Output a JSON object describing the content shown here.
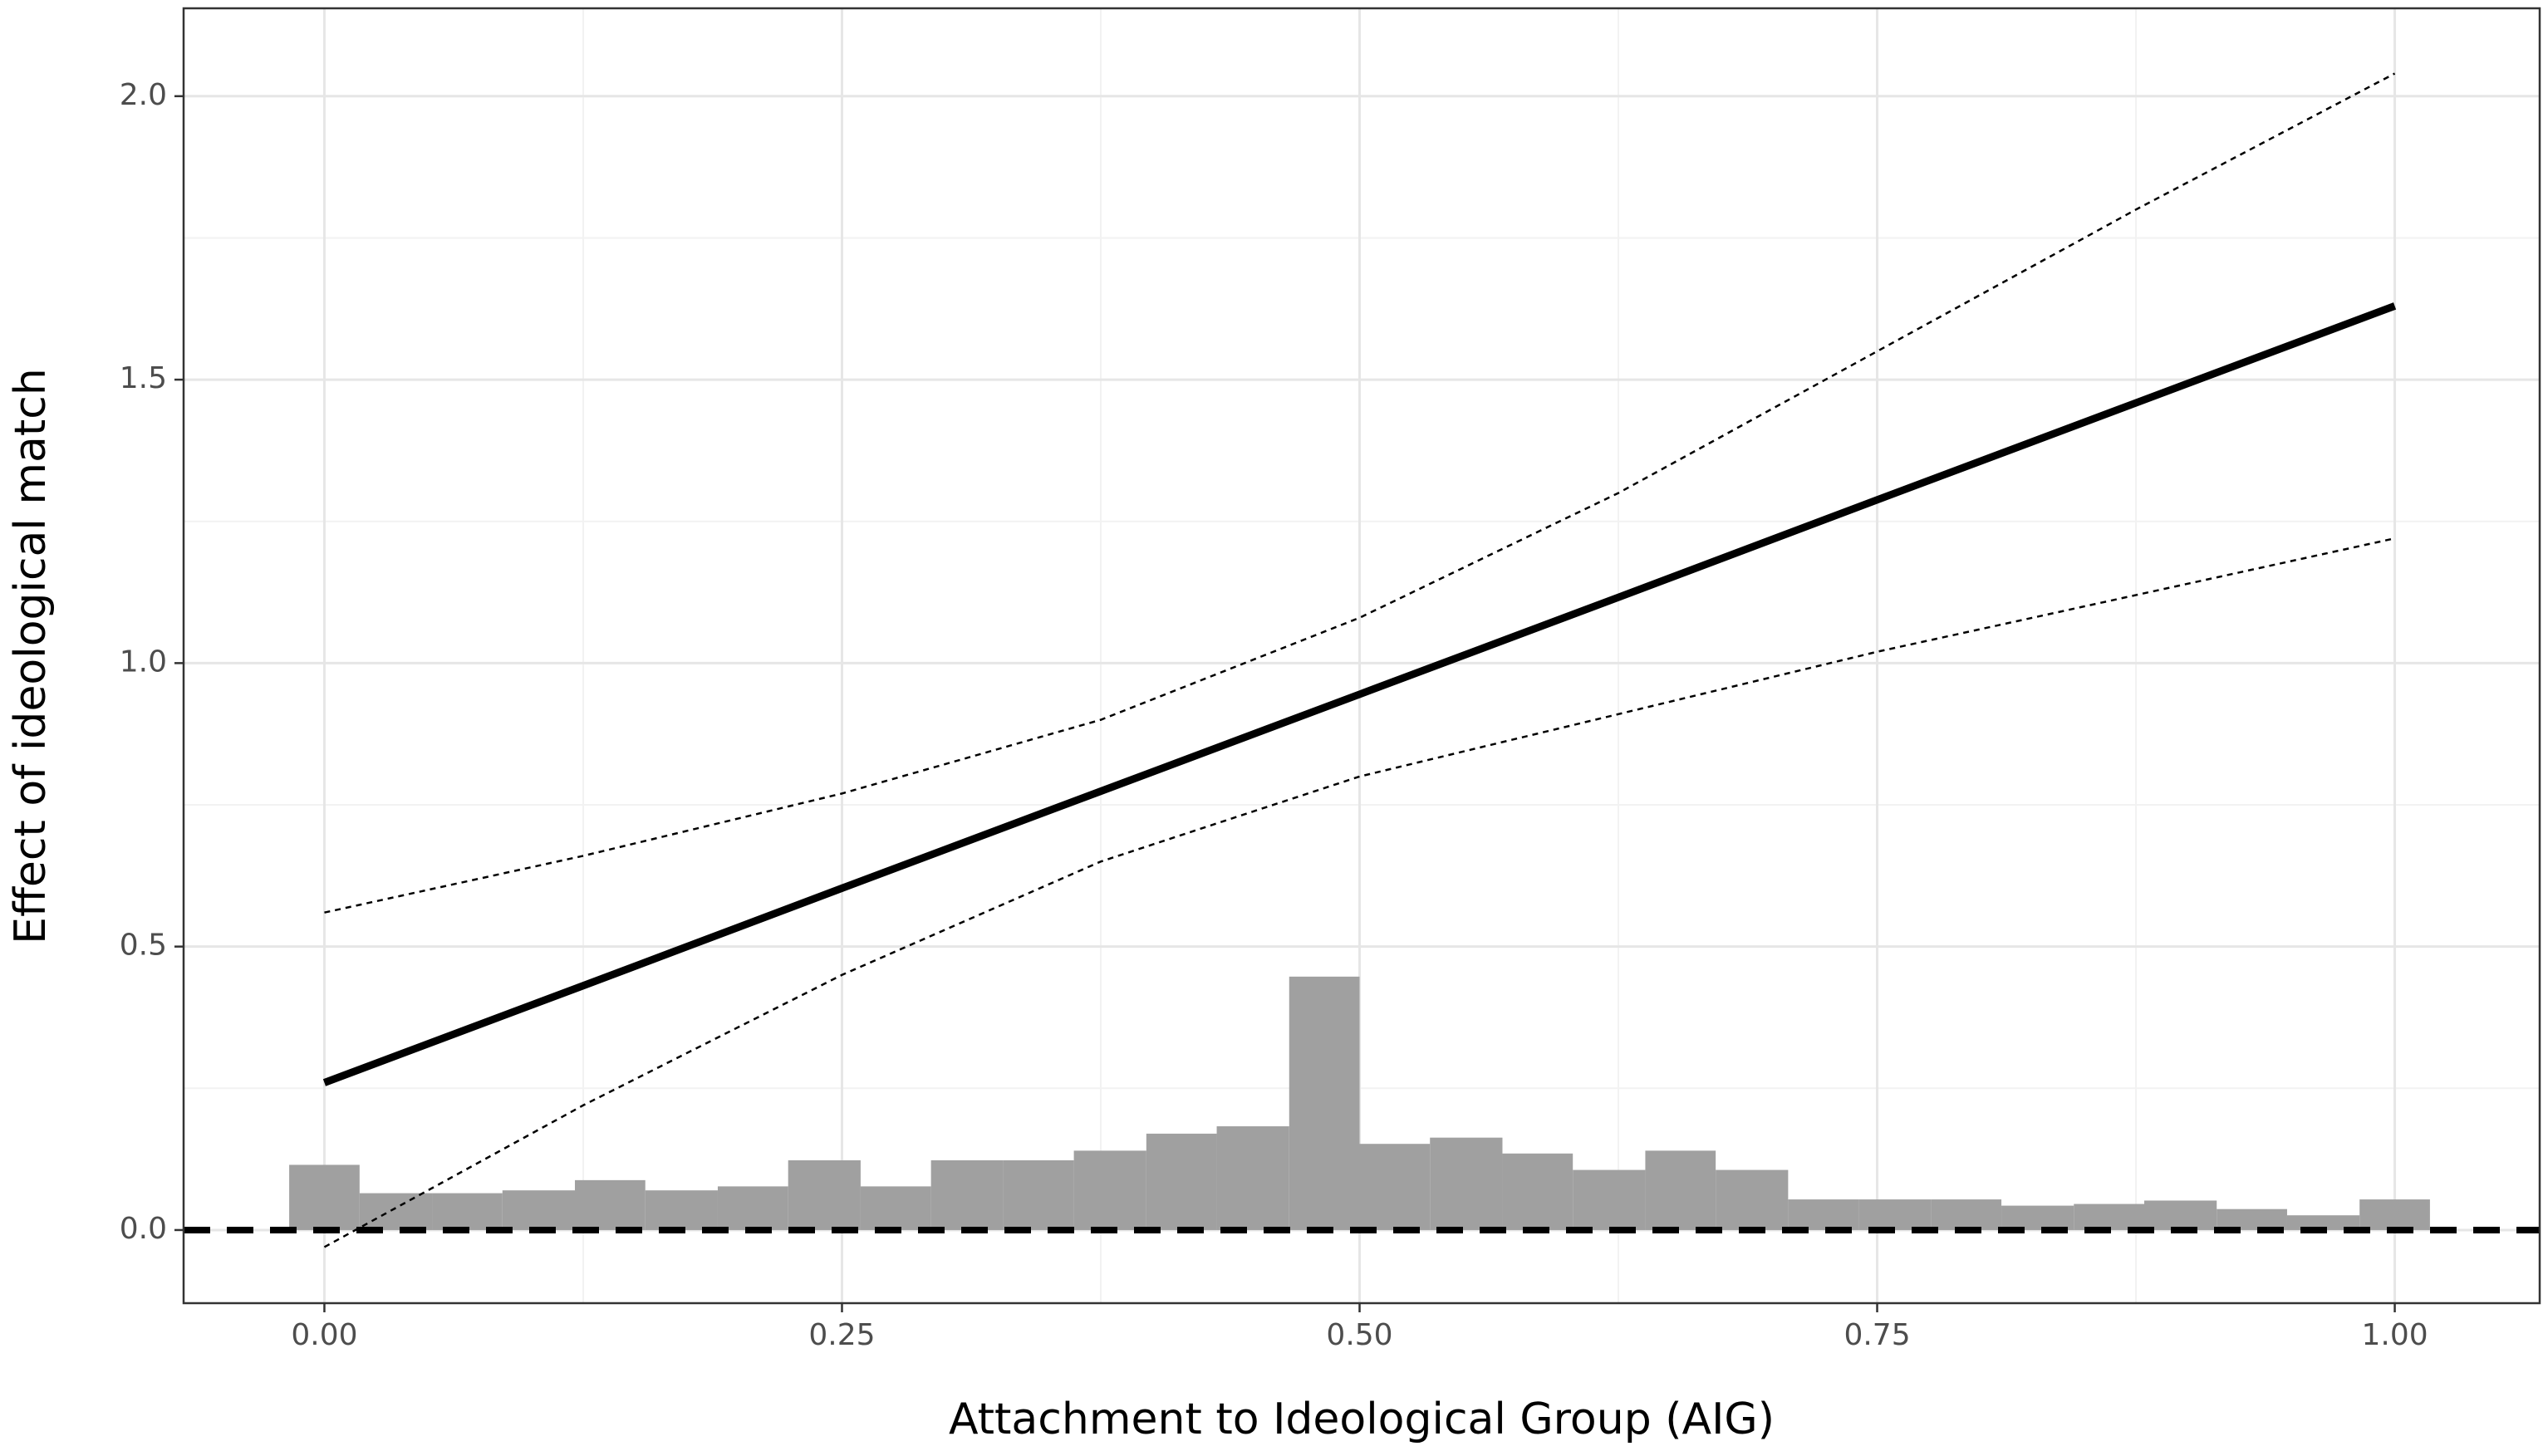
{
  "chart_data": {
    "type": "line",
    "xlabel": "Attachment to Ideological Group (AIG)",
    "ylabel": "Effect of ideological match",
    "xlim": [
      -0.068,
      1.07
    ],
    "ylim": [
      -0.129,
      2.155
    ],
    "xticks": [
      {
        "value": 0,
        "label": "0.00"
      },
      {
        "value": 0.25,
        "label": "0.25"
      },
      {
        "value": 0.5,
        "label": "0.50"
      },
      {
        "value": 0.75,
        "label": "0.75"
      },
      {
        "value": 1,
        "label": "1.00"
      }
    ],
    "yticks": [
      {
        "value": 0,
        "label": "0.0"
      },
      0.5,
      {
        "value": 1,
        "label": "1.0"
      },
      1.5,
      {
        "value": 2,
        "label": "2.0"
      }
    ],
    "xminor": [
      0.125,
      0.375,
      0.625,
      0.875
    ],
    "yminor": [
      0.25,
      0.75,
      1.25,
      1.75
    ],
    "grid": true,
    "hline": 0,
    "x": [
      0,
      0.125,
      0.25,
      0.375,
      0.5,
      0.625,
      0.75,
      0.875,
      1
    ],
    "series": [
      {
        "color": "#000000",
        "style": "solid",
        "values": [
          0.26,
          0.431,
          0.603,
          0.774,
          0.945,
          1.116,
          1.288,
          1.459,
          1.63
        ]
      },
      {
        "color": "#000000",
        "style": "dotted",
        "values": [
          0.56,
          0.66,
          0.77,
          0.9,
          1.08,
          1.3,
          1.55,
          1.8,
          2.04
        ]
      },
      {
        "color": "#000000",
        "style": "dotted",
        "values": [
          -0.03,
          0.22,
          0.45,
          0.65,
          0.8,
          0.91,
          1.02,
          1.12,
          1.22
        ]
      }
    ],
    "histogram": {
      "color": "#a0a0a0",
      "bins": [
        -0.017,
        0.017,
        0.052,
        0.086,
        0.121,
        0.155,
        0.19,
        0.224,
        0.259,
        0.293,
        0.328,
        0.362,
        0.397,
        0.431,
        0.466,
        0.5,
        0.534,
        0.569,
        0.603,
        0.638,
        0.672,
        0.707,
        0.741,
        0.776,
        0.81,
        0.845,
        0.879,
        0.914,
        0.948,
        0.983,
        1.017
      ],
      "values": [
        0.115,
        0.065,
        0.065,
        0.07,
        0.088,
        0.07,
        0.077,
        0.123,
        0.077,
        0.123,
        0.123,
        0.14,
        0.17,
        0.183,
        0.447,
        0.152,
        0.163,
        0.135,
        0.106,
        0.14,
        0.106,
        0.054,
        0.054,
        0.054,
        0.043,
        0.046,
        0.052,
        0.037,
        0.026,
        0.054
      ]
    }
  }
}
